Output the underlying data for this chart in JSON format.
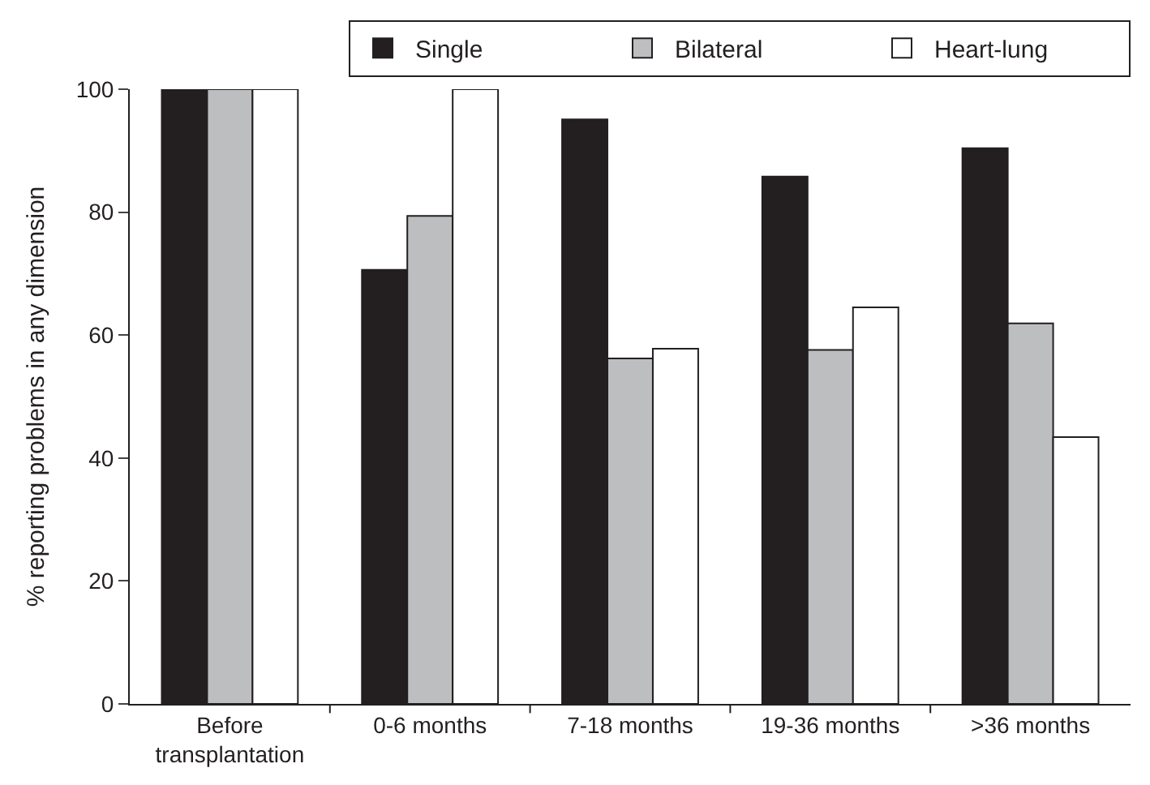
{
  "chart_data": {
    "type": "bar",
    "ylabel": "% reporting problems in any dimension",
    "categories": [
      "Before\ntransplantation",
      "0-6 months",
      "7-18 months",
      "19-36 months",
      ">36 months"
    ],
    "series": [
      {
        "name": "Single",
        "color": "#231f20",
        "values": [
          100,
          70.6,
          95.1,
          85.8,
          90.4
        ]
      },
      {
        "name": "Bilateral",
        "color": "#bcbec0",
        "values": [
          100,
          79.4,
          56.2,
          57.6,
          61.9
        ]
      },
      {
        "name": "Heart-lung",
        "color": "#ffffff",
        "values": [
          100,
          100,
          57.8,
          64.5,
          43.4
        ]
      }
    ],
    "ylim": [
      0,
      100
    ],
    "yticks": [
      0,
      20,
      40,
      60,
      80,
      100
    ],
    "legend": "top right"
  }
}
